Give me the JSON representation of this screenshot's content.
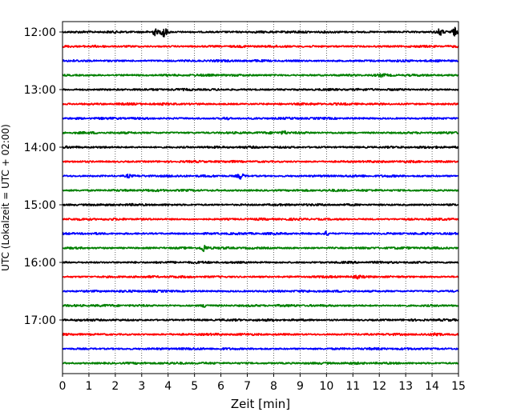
{
  "chart_data": {
    "type": "line",
    "title": "",
    "xlabel": "Zeit  [min]",
    "ylabel": "UTC (Lokalzeit = UTC + 02:00)",
    "xlim": [
      0,
      15
    ],
    "x_ticks": [
      "0",
      "1",
      "2",
      "3",
      "4",
      "5",
      "6",
      "7",
      "8",
      "9",
      "10",
      "11",
      "12",
      "13",
      "14",
      "15"
    ],
    "y_ticks": [
      {
        "label": "12:00",
        "row": 0
      },
      {
        "label": "13:00",
        "row": 4
      },
      {
        "label": "14:00",
        "row": 8
      },
      {
        "label": "15:00",
        "row": 12
      },
      {
        "label": "16:00",
        "row": 16
      },
      {
        "label": "17:00",
        "row": 20
      }
    ],
    "row_interval_minutes": 15,
    "row_count": 24,
    "colors": [
      "#000000",
      "#ff0000",
      "#0000ff",
      "#008000"
    ],
    "grid": "vertical dotted at each minute",
    "events": [
      {
        "row": 0,
        "minute": 3.5,
        "amp": 0.8
      },
      {
        "row": 0,
        "minute": 3.85,
        "amp": 1.6
      },
      {
        "row": 0,
        "minute": 14.3,
        "amp": 0.9
      },
      {
        "row": 0,
        "minute": 14.85,
        "amp": 1.0
      },
      {
        "row": 6,
        "minute": 6.2,
        "amp": 0.4
      },
      {
        "row": 7,
        "minute": 8.4,
        "amp": 0.5
      },
      {
        "row": 10,
        "minute": 6.75,
        "amp": 0.8
      },
      {
        "row": 10,
        "minute": 2.5,
        "amp": 0.4
      },
      {
        "row": 14,
        "minute": 10.0,
        "amp": 0.5
      },
      {
        "row": 15,
        "minute": 5.35,
        "amp": 1.0
      },
      {
        "row": 19,
        "minute": 5.4,
        "amp": 0.5
      },
      {
        "row": 21,
        "minute": 14.2,
        "amp": 0.5
      },
      {
        "row": 3,
        "minute": 12.1,
        "amp": 0.3
      },
      {
        "row": 17,
        "minute": 11.2,
        "amp": 0.3
      }
    ]
  }
}
